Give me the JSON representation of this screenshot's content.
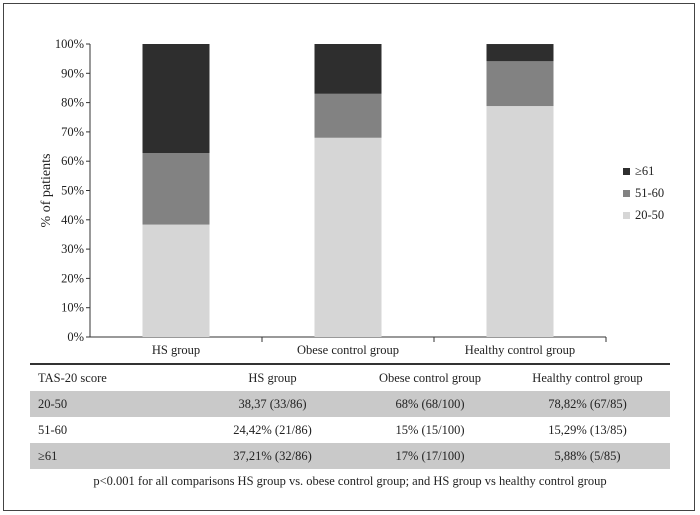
{
  "chart_data": {
    "type": "bar",
    "stacked": true,
    "categories": [
      "HS group",
      "Obese control group",
      "Healthy control group"
    ],
    "series": [
      {
        "name": "20-50",
        "values": [
          38.37,
          68,
          78.82
        ],
        "color": "#d6d6d6"
      },
      {
        "name": "51-60",
        "values": [
          24.42,
          15,
          15.29
        ],
        "color": "#828282"
      },
      {
        "name": "≥61",
        "values": [
          37.21,
          17,
          5.88
        ],
        "color": "#2e2e2e"
      }
    ],
    "legend_order": [
      "≥61",
      "51-60",
      "20-50"
    ],
    "legend_position": "right",
    "ylabel": "% of patients",
    "ylim": [
      0,
      100
    ],
    "yticks": [
      "0%",
      "10%",
      "20%",
      "30%",
      "40%",
      "50%",
      "60%",
      "70%",
      "80%",
      "90%",
      "100%"
    ],
    "grid": false
  },
  "table": {
    "headers": [
      "TAS-20 score",
      "HS group",
      "Obese control group",
      "Healthy control group"
    ],
    "rows": [
      [
        "20-50",
        "38,37 (33/86)",
        "68% (68/100)",
        "78,82% (67/85)"
      ],
      [
        "51-60",
        "24,42% (21/86)",
        "15% (15/100)",
        "15,29% (13/85)"
      ],
      [
        "≥61",
        "37,21% (32/86)",
        "17% (17/100)",
        "5,88% (5/85)"
      ]
    ]
  },
  "footnote": "p<0.001 for all comparisons HS group vs. obese control group; and HS group vs healthy control group"
}
